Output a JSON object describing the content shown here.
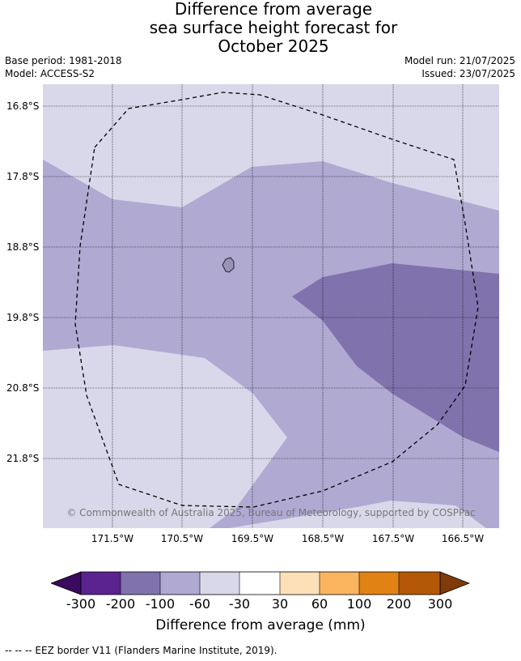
{
  "title": {
    "line1": "Difference from average",
    "line2": "sea surface height forecast for",
    "line3": "October 2025"
  },
  "meta": {
    "base_period": "Base period: 1981-2018",
    "model": "Model: ACCESS-S2",
    "model_run": "Model run: 21/07/2025",
    "issued": "Issued: 23/07/2025"
  },
  "map": {
    "lat_labels": [
      "16.8°S",
      "17.8°S",
      "18.8°S",
      "19.8°S",
      "20.8°S",
      "21.8°S"
    ],
    "lon_labels": [
      "171.5°W",
      "170.5°W",
      "169.5°W",
      "168.5°W",
      "167.5°W",
      "166.5°W"
    ],
    "copyright": "© Commonwealth of Australia 2025, Bureau of Meteorology, supported by COSPPac",
    "colors": {
      "-30_to_-60": "#d8d8ea",
      "-60_to_-100": "#b0a9d2",
      "-100_to_-200": "#8073ad",
      "land": "#9a93b8",
      "eez_border": "#000000"
    }
  },
  "colorbar": {
    "ticks": [
      "-300",
      "-200",
      "-100",
      "-60",
      "-30",
      "30",
      "60",
      "100",
      "200",
      "300"
    ],
    "colors": [
      "#3a0a5e",
      "#5a2390",
      "#8073ad",
      "#b0a9d2",
      "#d8d8ea",
      "#ffffff",
      "#fde0b8",
      "#fbb55f",
      "#e08214",
      "#b35806",
      "#7f3b08"
    ],
    "label": "Difference from average (mm)"
  },
  "footnote": "--  --  -- EEZ border V11 (Flanders Marine Institute, 2019)."
}
